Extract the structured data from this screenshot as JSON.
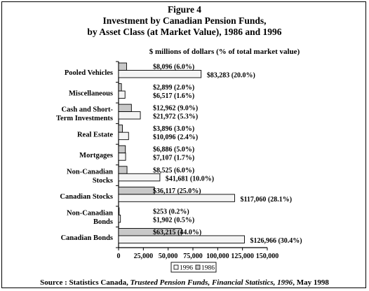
{
  "figure": {
    "label": "Figure 4",
    "title_line1": "Investment by Canadian Pension Funds,",
    "title_line2": "by Asset Class (at Market Value), 1986 and 1996",
    "units": "$ millions of dollars (% of total market value)"
  },
  "source": {
    "prefix": "Source : Statistics Canada, ",
    "publication": "Trusteed Pension Funds, Financial Statistics, 1996",
    "suffix": ", May 1998"
  },
  "chart_data": {
    "type": "bar",
    "orientation": "horizontal",
    "units": "$ millions of dollars (% of total market value)",
    "categories": [
      [
        "Pooled Vehicles"
      ],
      [
        "Miscellaneous"
      ],
      [
        "Cash and Short-",
        "Term Investments"
      ],
      [
        "Real Estate"
      ],
      [
        "Mortgages"
      ],
      [
        "Non-Canadian",
        "Stocks"
      ],
      [
        "Canadian Stocks"
      ],
      [
        "Non-Canadian",
        "Bonds"
      ],
      [
        "Canadian Bonds"
      ]
    ],
    "series": [
      {
        "name": "1986",
        "color": "#c8c8c8",
        "values": [
          8096,
          2899,
          12962,
          3896,
          6886,
          8525,
          36117,
          253,
          63215
        ],
        "labels": [
          "$8,096 (6.0%)",
          "$2,899 (2.0%)",
          "$12,962 (9.0%)",
          "$3,896 (3.0%)",
          "$6,886 (5.0%)",
          "$8,525 (6.0%)",
          "$36,117 (25.0%)",
          "$253 (0.2%)",
          "$63,215 (44.0%)"
        ]
      },
      {
        "name": "1996",
        "color": "#f4f4f4",
        "values": [
          83283,
          6517,
          21972,
          10096,
          7107,
          41681,
          117060,
          1902,
          126966
        ],
        "labels": [
          "$83,283 (20.0%)",
          "$6,517 (1.6%)",
          "$21,972 (5.3%)",
          "$10,096 (2.4%)",
          "$7,107 (1.7%)",
          "$41,681 (10.0%)",
          "$117,060 (28.1%)",
          "$1,902 (0.5%)",
          "$126,966 (30.4%)"
        ]
      }
    ],
    "xlim": [
      0,
      150000
    ],
    "xticks": [
      0,
      25000,
      50000,
      75000,
      100000,
      125000,
      150000
    ],
    "xtick_labels": [
      "0",
      "25,000",
      "50,000",
      "75,000",
      "100,000",
      "125,000",
      "150,000"
    ],
    "legend": {
      "placement": "bottom-center",
      "entries": [
        "1996",
        "1986"
      ]
    },
    "grid": false
  }
}
